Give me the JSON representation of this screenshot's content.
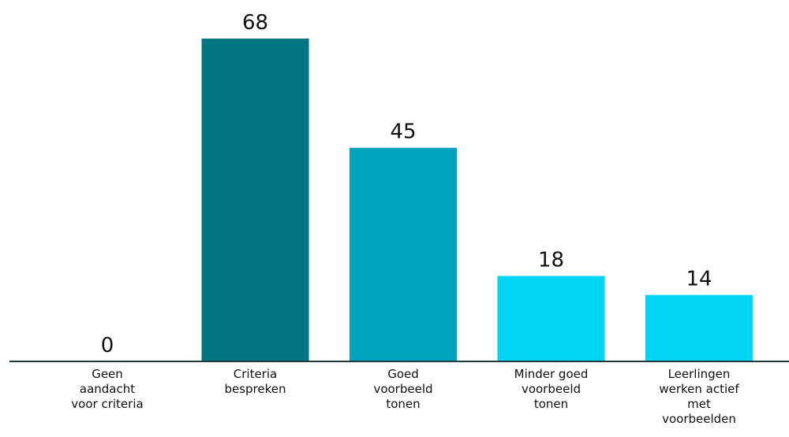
{
  "chart_data": {
    "type": "bar",
    "categories": [
      [
        "Geen",
        "aandacht",
        "voor criteria"
      ],
      [
        "Criteria",
        "bespreken"
      ],
      [
        "Goed",
        "voorbeeld",
        "tonen"
      ],
      [
        "Minder goed",
        "voorbeeld",
        "tonen"
      ],
      [
        "Leerlingen",
        "werken actief",
        "met",
        "voorbeelden"
      ]
    ],
    "values": [
      0,
      68,
      45,
      18,
      14
    ],
    "value_labels": [
      "0",
      "68",
      "45",
      "18",
      "14"
    ],
    "colors": [
      "#007682",
      "#007682",
      "#00a4be",
      "#00d7f4",
      "#00d7f4"
    ],
    "axis_color": "#1f3a3d",
    "ylim": [
      0,
      68
    ],
    "grid": false,
    "legend": "none",
    "title": "",
    "xlabel": "",
    "ylabel": ""
  }
}
